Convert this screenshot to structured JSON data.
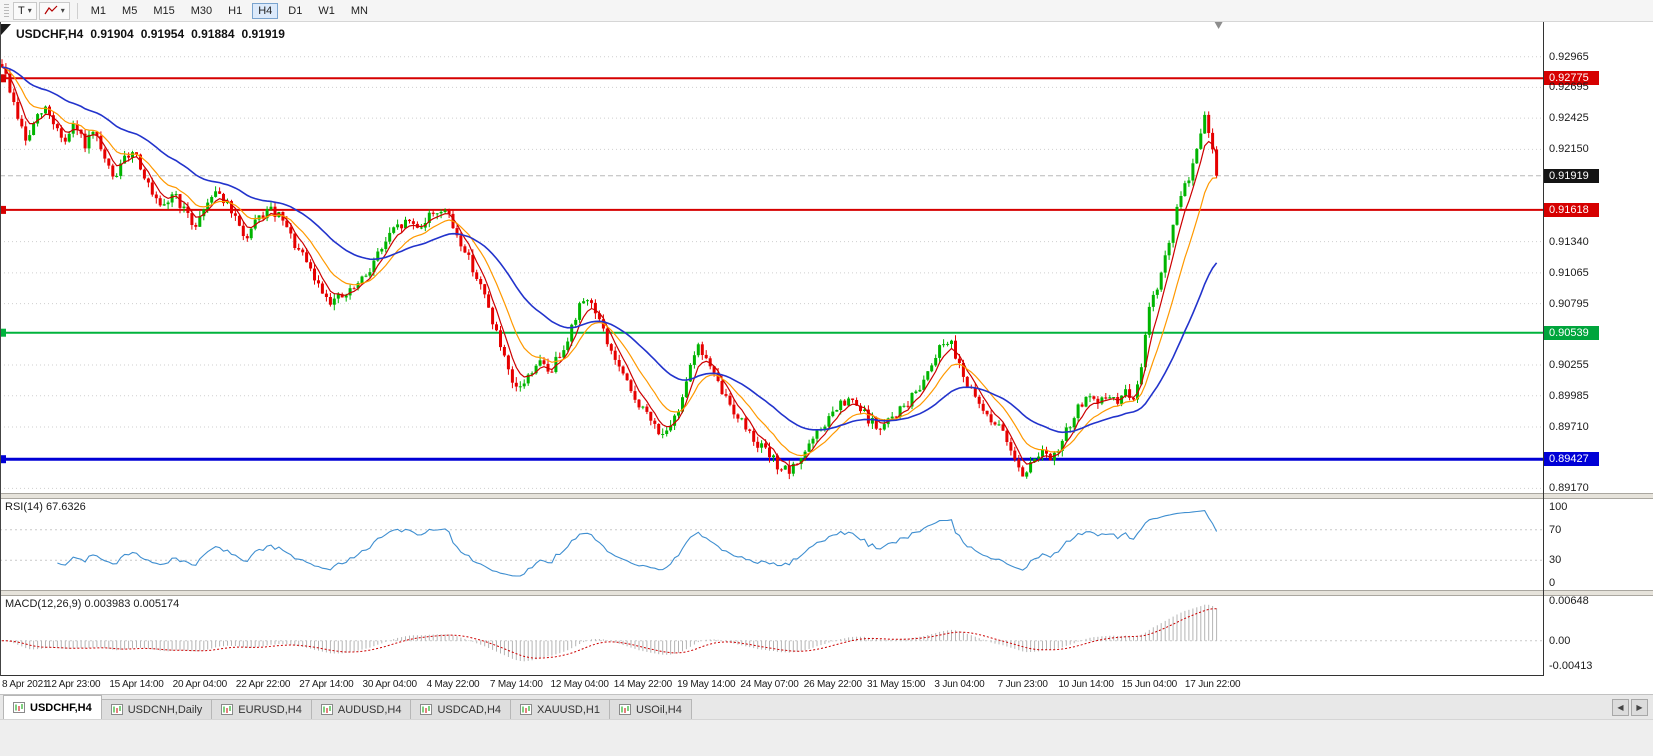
{
  "toolbar": {
    "templates_label": "T",
    "timeframes": [
      {
        "label": "M1",
        "active": false
      },
      {
        "label": "M5",
        "active": false
      },
      {
        "label": "M15",
        "active": false
      },
      {
        "label": "M30",
        "active": false
      },
      {
        "label": "H1",
        "active": false
      },
      {
        "label": "H4",
        "active": true
      },
      {
        "label": "D1",
        "active": false
      },
      {
        "label": "W1",
        "active": false
      },
      {
        "label": "MN",
        "active": false
      }
    ]
  },
  "icons": {
    "dropdown": "▾",
    "scroll_left": "◀",
    "scroll_right": "▶"
  },
  "chart": {
    "symbol_period": "USDCHF,H4",
    "open": "0.91904",
    "high": "0.91954",
    "low": "0.91884",
    "close": "0.91919"
  },
  "chart_data": {
    "type": "candlestick",
    "symbol": "USDCHF",
    "period": "H4",
    "ylim": [
      0.8913,
      0.9327
    ],
    "bar_count": 308,
    "shift_bars": 82,
    "candle_up": "#00b400",
    "candle_down": "#e60000",
    "bid_line": {
      "value": 0.91919,
      "color": "#b8b8b8"
    },
    "hlines": [
      {
        "value": 0.92775,
        "color": "#d60000",
        "width": 2
      },
      {
        "value": 0.91618,
        "color": "#d60000",
        "width": 2
      },
      {
        "value": 0.90539,
        "color": "#00b33c",
        "width": 2
      },
      {
        "value": 0.89427,
        "color": "#0000d6",
        "width": 3
      }
    ],
    "y_ticks": [
      {
        "label": "0.92965",
        "value": 0.92965
      },
      {
        "label": "0.92775",
        "value": 0.92775,
        "tag": "#d60000"
      },
      {
        "label": "0.92695",
        "value": 0.92695
      },
      {
        "label": "0.92425",
        "value": 0.92425
      },
      {
        "label": "0.92150",
        "value": 0.9215
      },
      {
        "label": "0.91919",
        "value": 0.91919,
        "tag": "#141414"
      },
      {
        "label": "0.91618",
        "value": 0.91618,
        "tag": "#d60000"
      },
      {
        "label": "0.91340",
        "value": 0.9134
      },
      {
        "label": "0.91065",
        "value": 0.91065
      },
      {
        "label": "0.90795",
        "value": 0.90795
      },
      {
        "label": "0.90539",
        "value": 0.90539,
        "tag": "#00a53c"
      },
      {
        "label": "0.90255",
        "value": 0.90255
      },
      {
        "label": "0.89985",
        "value": 0.89985
      },
      {
        "label": "0.89710",
        "value": 0.8971
      },
      {
        "label": "0.89427",
        "value": 0.89427,
        "tag": "#0000d6"
      },
      {
        "label": "0.89170",
        "value": 0.8917
      }
    ],
    "x_ticks": [
      "8 Apr 2021",
      "12 Apr 23:00",
      "15 Apr 14:00",
      "20 Apr 04:00",
      "22 Apr 22:00",
      "27 Apr 14:00",
      "30 Apr 04:00",
      "4 May 22:00",
      "7 May 14:00",
      "12 May 04:00",
      "14 May 22:00",
      "19 May 14:00",
      "24 May 07:00",
      "26 May 22:00",
      "31 May 15:00",
      "3 Jun 04:00",
      "7 Jun 23:00",
      "10 Jun 14:00",
      "15 Jun 04:00",
      "17 Jun 22:00"
    ],
    "moving_averages": [
      {
        "name": "fast",
        "period": 5,
        "color": "#cc0000",
        "width": 1.2
      },
      {
        "name": "medium",
        "period": 12,
        "color": "#ff9900",
        "width": 1.2
      },
      {
        "name": "slow",
        "period": 34,
        "color": "#2233cc",
        "width": 1.6
      }
    ],
    "price_path": [
      [
        0,
        0.929
      ],
      [
        0.006,
        0.9269
      ],
      [
        0.013,
        0.9244
      ],
      [
        0.02,
        0.9221
      ],
      [
        0.028,
        0.9241
      ],
      [
        0.036,
        0.9251
      ],
      [
        0.044,
        0.9236
      ],
      [
        0.052,
        0.9221
      ],
      [
        0.06,
        0.9236
      ],
      [
        0.068,
        0.9219
      ],
      [
        0.076,
        0.9229
      ],
      [
        0.084,
        0.9206
      ],
      [
        0.092,
        0.9189
      ],
      [
        0.1,
        0.9204
      ],
      [
        0.108,
        0.9216
      ],
      [
        0.116,
        0.9196
      ],
      [
        0.124,
        0.9173
      ],
      [
        0.132,
        0.916
      ],
      [
        0.141,
        0.9178
      ],
      [
        0.15,
        0.9161
      ],
      [
        0.158,
        0.9147
      ],
      [
        0.166,
        0.9162
      ],
      [
        0.175,
        0.9181
      ],
      [
        0.184,
        0.9169
      ],
      [
        0.193,
        0.9151
      ],
      [
        0.202,
        0.9136
      ],
      [
        0.211,
        0.9154
      ],
      [
        0.22,
        0.9162
      ],
      [
        0.23,
        0.9154
      ],
      [
        0.24,
        0.9133
      ],
      [
        0.25,
        0.9116
      ],
      [
        0.26,
        0.9096
      ],
      [
        0.271,
        0.9082
      ],
      [
        0.283,
        0.9086
      ],
      [
        0.297,
        0.91
      ],
      [
        0.31,
        0.9124
      ],
      [
        0.322,
        0.9143
      ],
      [
        0.334,
        0.9152
      ],
      [
        0.344,
        0.9147
      ],
      [
        0.354,
        0.9159
      ],
      [
        0.364,
        0.9163
      ],
      [
        0.374,
        0.9141
      ],
      [
        0.384,
        0.912
      ],
      [
        0.394,
        0.9095
      ],
      [
        0.403,
        0.9068
      ],
      [
        0.412,
        0.9036
      ],
      [
        0.421,
        0.9003
      ],
      [
        0.431,
        0.9011
      ],
      [
        0.441,
        0.9029
      ],
      [
        0.451,
        0.9019
      ],
      [
        0.461,
        0.9039
      ],
      [
        0.471,
        0.9063
      ],
      [
        0.479,
        0.9086
      ],
      [
        0.488,
        0.9076
      ],
      [
        0.498,
        0.9046
      ],
      [
        0.508,
        0.9023
      ],
      [
        0.518,
        0.9001
      ],
      [
        0.528,
        0.8986
      ],
      [
        0.538,
        0.8971
      ],
      [
        0.548,
        0.8963
      ],
      [
        0.557,
        0.8986
      ],
      [
        0.565,
        0.9021
      ],
      [
        0.572,
        0.9043
      ],
      [
        0.58,
        0.9031
      ],
      [
        0.589,
        0.9009
      ],
      [
        0.599,
        0.8991
      ],
      [
        0.609,
        0.8976
      ],
      [
        0.619,
        0.8961
      ],
      [
        0.629,
        0.8949
      ],
      [
        0.639,
        0.8937
      ],
      [
        0.649,
        0.893
      ],
      [
        0.659,
        0.8947
      ],
      [
        0.669,
        0.8961
      ],
      [
        0.679,
        0.8976
      ],
      [
        0.689,
        0.8989
      ],
      [
        0.699,
        0.8994
      ],
      [
        0.711,
        0.8981
      ],
      [
        0.723,
        0.8968
      ],
      [
        0.735,
        0.8982
      ],
      [
        0.747,
        0.8993
      ],
      [
        0.759,
        0.9013
      ],
      [
        0.771,
        0.9041
      ],
      [
        0.779,
        0.9049
      ],
      [
        0.787,
        0.9031
      ],
      [
        0.796,
        0.9005
      ],
      [
        0.805,
        0.8989
      ],
      [
        0.814,
        0.8979
      ],
      [
        0.823,
        0.8967
      ],
      [
        0.832,
        0.8951
      ],
      [
        0.84,
        0.8929
      ],
      [
        0.848,
        0.8939
      ],
      [
        0.856,
        0.8953
      ],
      [
        0.863,
        0.8939
      ],
      [
        0.87,
        0.8951
      ],
      [
        0.878,
        0.8971
      ],
      [
        0.886,
        0.8988
      ],
      [
        0.894,
        0.8997
      ],
      [
        0.902,
        0.8989
      ],
      [
        0.91,
        0.9
      ],
      [
        0.918,
        0.8993
      ],
      [
        0.926,
        0.9002
      ],
      [
        0.933,
        0.8998
      ],
      [
        0.937,
        0.9013
      ],
      [
        0.942,
        0.9056
      ],
      [
        0.947,
        0.9089
      ],
      [
        0.952,
        0.9096
      ],
      [
        0.957,
        0.9116
      ],
      [
        0.962,
        0.9139
      ],
      [
        0.967,
        0.9159
      ],
      [
        0.972,
        0.9176
      ],
      [
        0.977,
        0.9191
      ],
      [
        0.982,
        0.9209
      ],
      [
        0.987,
        0.9229
      ],
      [
        0.991,
        0.9245
      ],
      [
        0.995,
        0.9226
      ],
      [
        0.998,
        0.9204
      ],
      [
        1,
        0.9192
      ]
    ],
    "indicators": {
      "rsi": {
        "label": "RSI(14) 67.6326",
        "period": 14,
        "levels": [
          100,
          70,
          30,
          0
        ],
        "color": "#3e8ed0"
      },
      "macd": {
        "label": "MACD(12,26,9) 0.003983 0.005174",
        "fast": 12,
        "slow": 26,
        "signal": 9,
        "ylim": [
          -0.0056,
          0.0073
        ],
        "ticks": [
          {
            "label": "0.00648",
            "value": 0.00648
          },
          {
            "label": "0.00",
            "value": 0
          },
          {
            "label": "-0.00413",
            "value": -0.00413
          }
        ],
        "hist_color": "#b4b4b4",
        "signal_color": "#cc0000"
      }
    }
  },
  "tabs": {
    "items": [
      {
        "label": "USDCHF,H4",
        "active": true
      },
      {
        "label": "USDCNH,Daily",
        "active": false
      },
      {
        "label": "EURUSD,H4",
        "active": false
      },
      {
        "label": "AUDUSD,H4",
        "active": false
      },
      {
        "label": "USDCAD,H4",
        "active": false
      },
      {
        "label": "XAUUSD,H1",
        "active": false
      },
      {
        "label": "USOil,H4",
        "active": false
      }
    ]
  }
}
